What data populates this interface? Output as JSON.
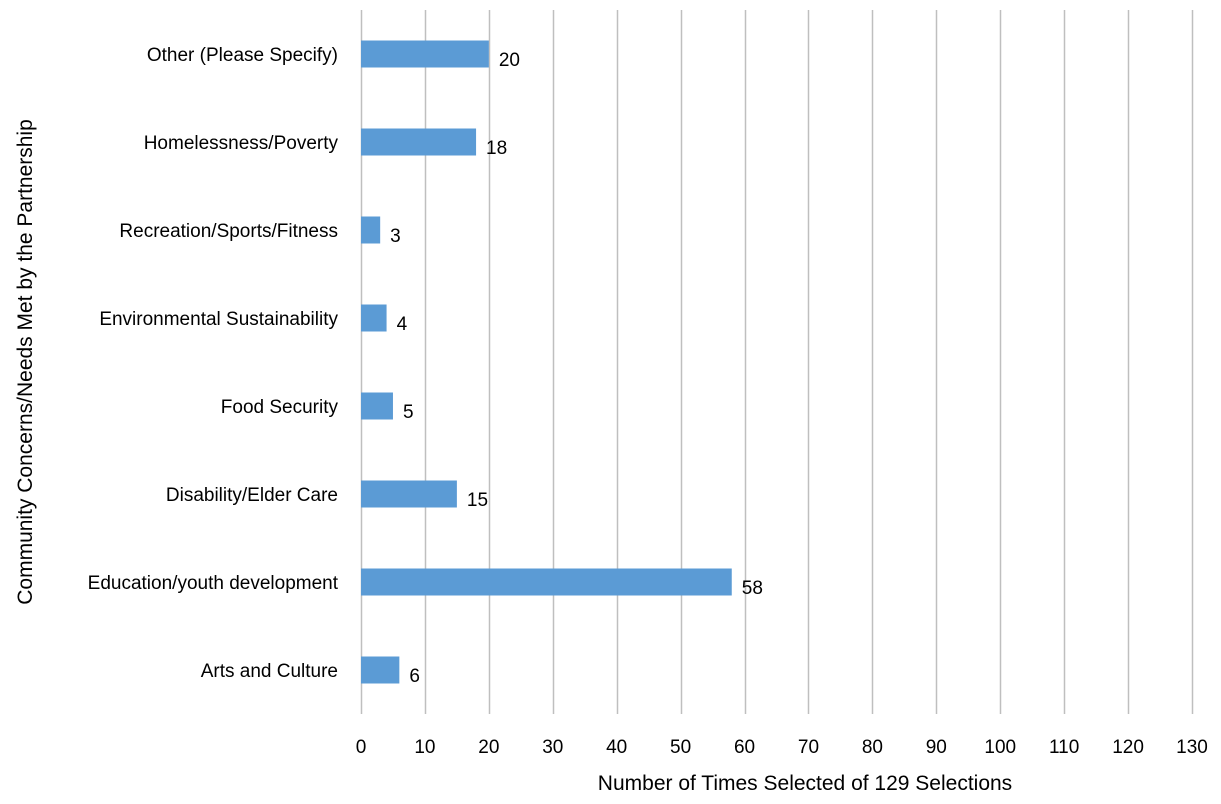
{
  "chart_data": {
    "type": "bar",
    "orientation": "horizontal",
    "categories": [
      "Arts and Culture",
      "Education/youth development",
      "Disability/Elder Care",
      "Food Security",
      "Environmental Sustainability",
      "Recreation/Sports/Fitness",
      "Homelessness/Poverty",
      "Other (Please Specify)"
    ],
    "values": [
      6,
      58,
      15,
      5,
      4,
      3,
      18,
      20
    ],
    "xlabel": "Number of Times Selected of 129 Selections",
    "ylabel": "Community Concerns/Needs Met by the Partnership",
    "xlim": [
      0,
      130
    ],
    "x_ticks": [
      0,
      10,
      20,
      30,
      40,
      50,
      60,
      70,
      80,
      90,
      100,
      110,
      120,
      130
    ],
    "x_tick_labels": [
      "0",
      "10",
      "20",
      "30",
      "40",
      "50",
      "60",
      "70",
      "80",
      "90",
      "100",
      "110",
      "120",
      "130"
    ],
    "data_labels": [
      "6",
      "58",
      "15",
      "5",
      "4",
      "3",
      "18",
      "20"
    ],
    "grid": "vertical",
    "legend": "none",
    "colors": {
      "bar": "#5b9bd5",
      "grid": "#bfbfbf",
      "axis": "#bfbfbf",
      "text": "#000000"
    }
  }
}
